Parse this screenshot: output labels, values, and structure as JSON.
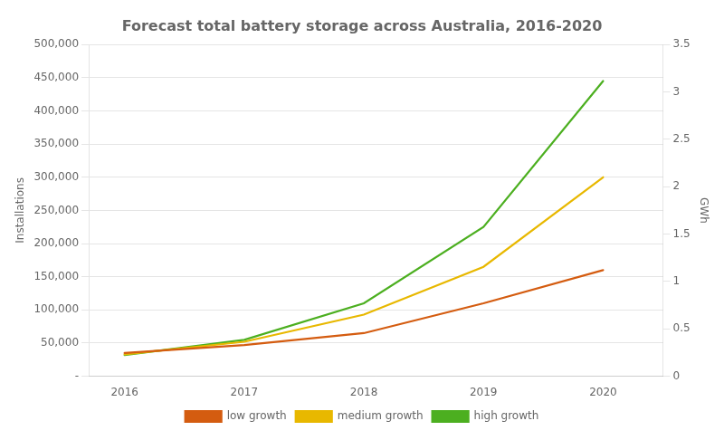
{
  "chart_data": {
    "type": "line",
    "title": "Forecast total battery storage across Australia, 2016-2020",
    "x": [
      2016,
      2017,
      2018,
      2019,
      2020
    ],
    "xlim": [
      2015.7,
      2020.5
    ],
    "xticks": [
      2016,
      2017,
      2018,
      2019,
      2020
    ],
    "series": [
      {
        "name": "low growth",
        "color": "#D45C10",
        "values": [
          35000,
          47000,
          65000,
          110000,
          160000
        ]
      },
      {
        "name": "medium growth",
        "color": "#E8B800",
        "values": [
          33000,
          52000,
          93000,
          165000,
          300000
        ]
      },
      {
        "name": "high growth",
        "color": "#4CAF20",
        "values": [
          32000,
          55000,
          110000,
          225000,
          445000
        ]
      }
    ],
    "ylabel": "Installations",
    "ylim": [
      0,
      500000
    ],
    "yticks": [
      {
        "value": 0,
        "label": "-"
      },
      {
        "value": 50000,
        "label": "50,000"
      },
      {
        "value": 100000,
        "label": "100,000"
      },
      {
        "value": 150000,
        "label": "150,000"
      },
      {
        "value": 200000,
        "label": "200,000"
      },
      {
        "value": 250000,
        "label": "250,000"
      },
      {
        "value": 300000,
        "label": "300,000"
      },
      {
        "value": 350000,
        "label": "350,000"
      },
      {
        "value": 400000,
        "label": "400,000"
      },
      {
        "value": 450000,
        "label": "450,000"
      },
      {
        "value": 500000,
        "label": "500,000"
      }
    ],
    "y2label": "GWh",
    "y2lim": [
      0,
      3.5
    ],
    "y2ticks": [
      0,
      0.5,
      1,
      1.5,
      2,
      2.5,
      3,
      3.5
    ],
    "grid": true,
    "legend": "bottom"
  }
}
